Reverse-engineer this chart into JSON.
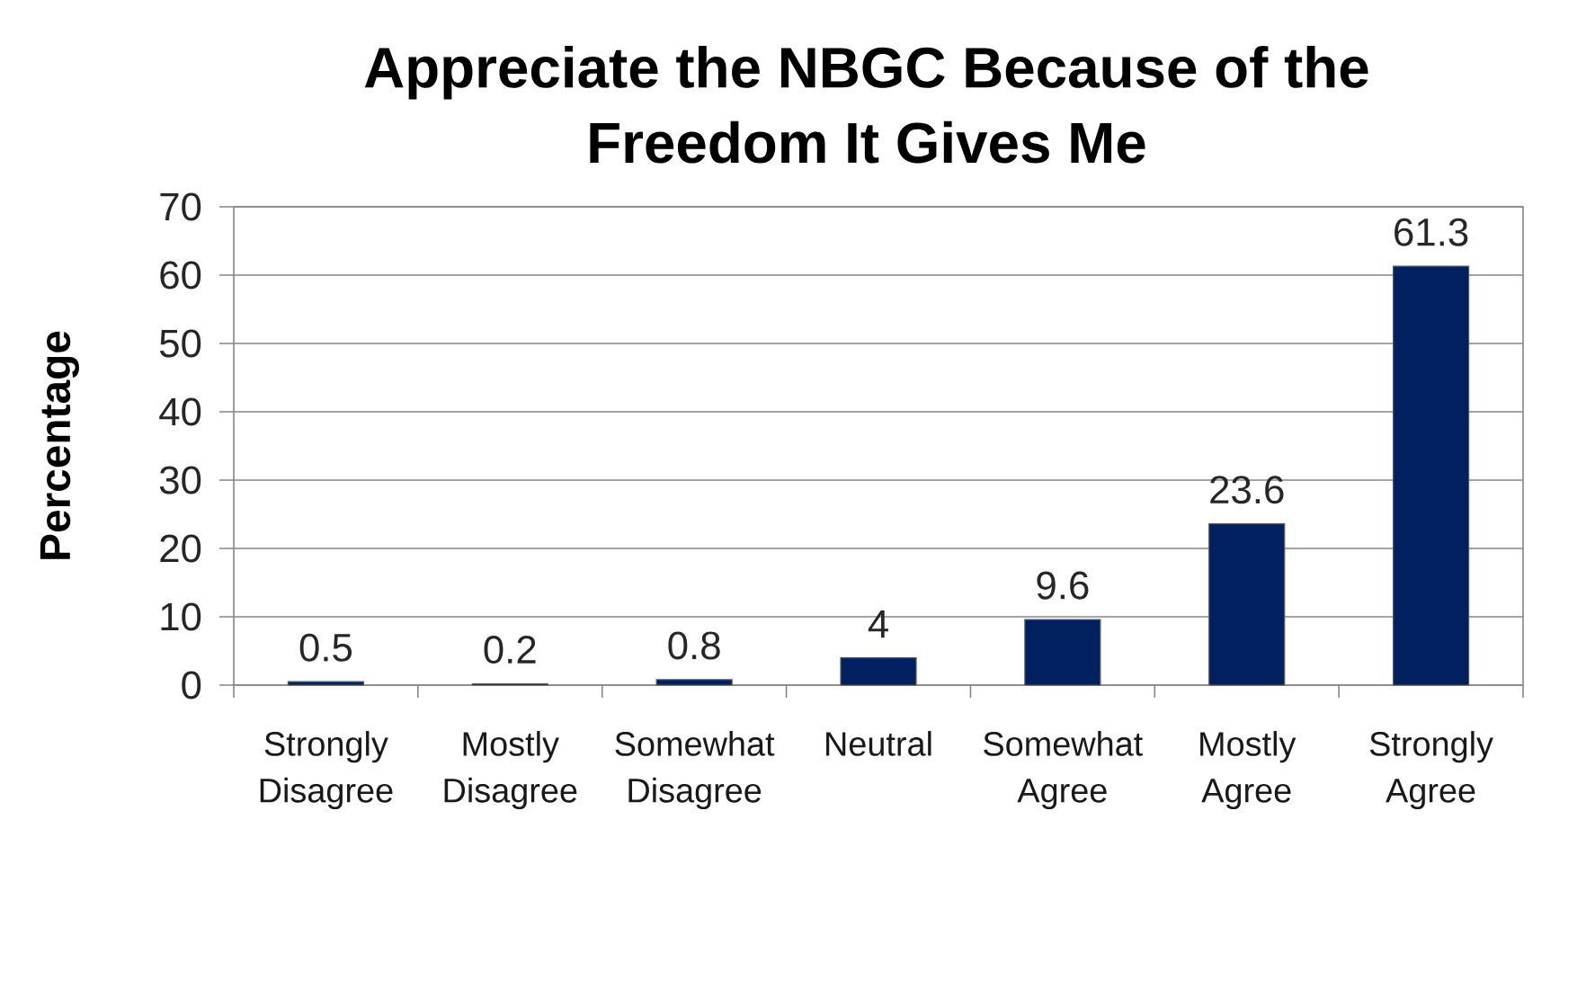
{
  "chart_data": {
    "type": "bar",
    "title": "Appreciate the NBGC Because of the Freedom It Gives Me",
    "ylabel": "Percentage",
    "categories": [
      "Strongly Disagree",
      "Mostly Disagree",
      "Somewhat Disagree",
      "Neutral",
      "Somewhat Agree",
      "Mostly Agree",
      "Strongly Agree"
    ],
    "values": [
      0.5,
      0.2,
      0.8,
      4,
      9.6,
      23.6,
      61.3
    ],
    "color": "#002060",
    "ylim": [
      0,
      70
    ],
    "yticks": [
      0,
      10,
      20,
      30,
      40,
      50,
      60,
      70
    ],
    "grid": "y",
    "data_labels": true
  }
}
